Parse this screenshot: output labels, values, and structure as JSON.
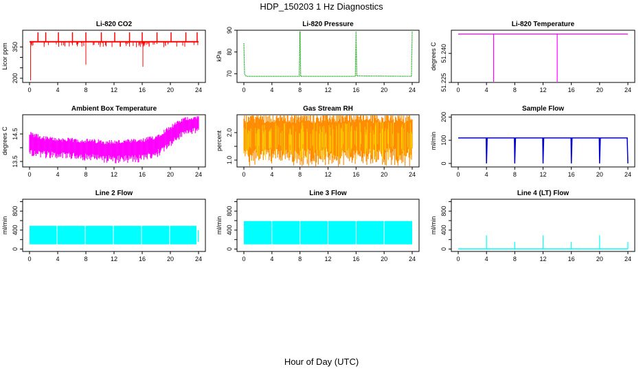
{
  "figure": {
    "title": "HDP_150203  1 Hz Diagnostics",
    "xlabel": "Hour of Day (UTC)"
  },
  "chart_data": [
    {
      "type": "line",
      "id": "co2",
      "title": "Li-820 CO2",
      "ylabel": "Licor ppm",
      "color": "#ff0000",
      "xlim": [
        0,
        24
      ],
      "ylim": [
        180,
        430
      ],
      "xticks": [
        0,
        4,
        8,
        12,
        16,
        20,
        24
      ],
      "yticks": [
        200,
        250,
        300,
        350
      ],
      "ytick_labels": [
        "200",
        "",
        "",
        "350"
      ],
      "series": [
        {
          "name": "baseline",
          "x": [
            0,
            24
          ],
          "y": [
            375,
            375
          ]
        },
        {
          "name": "spikes_up",
          "x": [
            1.2,
            2.3,
            4.1,
            6.1,
            8.0,
            10.2,
            12.1,
            14.2,
            16.0,
            18.1,
            20.1,
            22.2,
            23.8
          ],
          "y": [
            420,
            420,
            420,
            420,
            420,
            420,
            420,
            420,
            420,
            420,
            420,
            420,
            420
          ]
        },
        {
          "name": "spikes_down",
          "x": [
            0.15,
            8.0,
            16.1
          ],
          "y": [
            190,
            265,
            255
          ]
        }
      ]
    },
    {
      "type": "line",
      "id": "pressure",
      "title": "Li-820 Pressure",
      "ylabel": "kPa",
      "color": "#00a000",
      "xlim": [
        0,
        24
      ],
      "ylim": [
        66,
        90
      ],
      "xticks": [
        0,
        4,
        8,
        12,
        16,
        20,
        24
      ],
      "yticks": [
        70,
        80,
        90
      ],
      "ytick_labels": [
        "70",
        "80",
        "90"
      ],
      "series": [
        {
          "name": "pressure",
          "x": [
            0,
            0.1,
            0.2,
            0.4,
            7.9,
            8.0,
            8.1,
            15.9,
            16.0,
            16.1,
            23.9,
            24.0
          ],
          "y": [
            84,
            70,
            69.3,
            68.8,
            68.8,
            89.5,
            68.8,
            68.8,
            89.5,
            69.0,
            68.8,
            89.5
          ]
        }
      ]
    },
    {
      "type": "line",
      "id": "li820-temp",
      "title": "Li-820 Temperature",
      "ylabel": "degrees C",
      "color": "#ff00ff",
      "xlim": [
        0,
        24
      ],
      "ylim": [
        51.225,
        51.252
      ],
      "xticks": [
        0,
        4,
        8,
        12,
        16,
        20,
        24
      ],
      "yticks": [
        51.225,
        51.24
      ],
      "ytick_labels": [
        "51.225",
        "51.240"
      ],
      "series": [
        {
          "name": "temperature",
          "x": [
            0,
            5.0,
            5.0,
            5.0,
            14.0,
            14.0,
            14.0,
            24
          ],
          "y": [
            51.25,
            51.25,
            51.225,
            51.25,
            51.25,
            51.225,
            51.25,
            51.25
          ]
        }
      ]
    },
    {
      "type": "line",
      "id": "ambient-temp",
      "title": "Ambient Box Temperature",
      "ylabel": "degrees C",
      "color": "#ff00ff",
      "xlim": [
        0,
        24
      ],
      "ylim": [
        13.3,
        15.2
      ],
      "xticks": [
        0,
        4,
        8,
        12,
        16,
        20,
        24
      ],
      "yticks": [
        13.5,
        14.0,
        14.5
      ],
      "ytick_labels": [
        "13.5",
        "",
        "14.5"
      ],
      "series": [
        {
          "name": "upper",
          "x": [
            0,
            2,
            4,
            8,
            12,
            16,
            18,
            20,
            22,
            24
          ],
          "y": [
            14.5,
            14.35,
            14.3,
            14.25,
            14.2,
            14.25,
            14.4,
            14.75,
            15.05,
            15.1
          ]
        },
        {
          "name": "lower",
          "x": [
            0,
            2,
            4,
            8,
            12,
            16,
            18,
            20,
            22,
            24
          ],
          "y": [
            13.75,
            13.7,
            13.65,
            13.6,
            13.5,
            13.55,
            13.7,
            14.1,
            14.5,
            14.6
          ]
        }
      ]
    },
    {
      "type": "line",
      "id": "rh",
      "title": "Gas Stream RH",
      "ylabel": "percent",
      "color": "#ff8c00",
      "xlim": [
        0,
        24
      ],
      "ylim": [
        0.75,
        2.65
      ],
      "xticks": [
        0,
        4,
        8,
        12,
        16,
        20,
        24
      ],
      "yticks": [
        1.0,
        1.5,
        2.0
      ],
      "ytick_labels": [
        "1.0",
        "",
        "2.0"
      ],
      "series": [
        {
          "name": "upper",
          "x": [
            0,
            24
          ],
          "y": [
            2.55,
            2.55
          ]
        },
        {
          "name": "lower",
          "x": [
            0,
            24
          ],
          "y": [
            0.95,
            0.95
          ]
        }
      ]
    },
    {
      "type": "line",
      "id": "sample-flow",
      "title": "Sample Flow",
      "ylabel": "ml/min",
      "color": "#0000cc",
      "xlim": [
        0,
        24
      ],
      "ylim": [
        -15,
        210
      ],
      "xticks": [
        0,
        4,
        8,
        12,
        16,
        20,
        24
      ],
      "yticks": [
        0,
        100,
        200
      ],
      "ytick_labels": [
        "0",
        "100",
        "200"
      ],
      "series": [
        {
          "name": "flow",
          "x": [
            0,
            3.95,
            4.0,
            4.1,
            7.95,
            8.0,
            8.1,
            11.95,
            12.0,
            12.1,
            15.95,
            16.0,
            16.1,
            19.95,
            20.0,
            20.1,
            23.9,
            24.0
          ],
          "y": [
            110,
            110,
            0,
            110,
            110,
            0,
            110,
            110,
            0,
            110,
            110,
            0,
            110,
            110,
            0,
            110,
            110,
            0
          ]
        }
      ]
    },
    {
      "type": "area",
      "id": "line2-flow",
      "title": "Line 2 Flow",
      "ylabel": "ml/min",
      "color": "#00ffff",
      "xlim": [
        0,
        24
      ],
      "ylim": [
        -50,
        1050
      ],
      "xticks": [
        0,
        4,
        8,
        12,
        16,
        20,
        24
      ],
      "yticks": [
        0,
        200,
        400,
        600,
        800,
        1000
      ],
      "ytick_labels": [
        "0",
        "",
        "400",
        "",
        "800",
        ""
      ],
      "series": [
        {
          "name": "upper",
          "x": [
            0,
            23.7
          ],
          "y": [
            490,
            490
          ]
        },
        {
          "name": "lower",
          "x": [
            0,
            23.7
          ],
          "y": [
            100,
            100
          ]
        },
        {
          "name": "gaps",
          "x": [
            3.9,
            7.9,
            11.9,
            15.9,
            19.9
          ],
          "y": [
            0,
            0,
            0,
            0,
            0
          ]
        }
      ]
    },
    {
      "type": "area",
      "id": "line3-flow",
      "title": "Line 3 Flow",
      "ylabel": "ml/min",
      "color": "#00ffff",
      "xlim": [
        0,
        24
      ],
      "ylim": [
        -50,
        1050
      ],
      "xticks": [
        0,
        4,
        8,
        12,
        16,
        20,
        24
      ],
      "yticks": [
        0,
        200,
        400,
        600,
        800,
        1000
      ],
      "ytick_labels": [
        "0",
        "",
        "400",
        "",
        "800",
        ""
      ],
      "series": [
        {
          "name": "upper",
          "x": [
            0,
            24
          ],
          "y": [
            590,
            590
          ]
        },
        {
          "name": "lower",
          "x": [
            0,
            24
          ],
          "y": [
            100,
            100
          ]
        },
        {
          "name": "gaps",
          "x": [
            4.0,
            8.0,
            12.0,
            16.0,
            20.0
          ],
          "y": [
            0,
            0,
            0,
            0,
            0
          ]
        }
      ]
    },
    {
      "type": "line",
      "id": "line4-flow",
      "title": "Line 4 (LT) Flow",
      "ylabel": "ml/min",
      "color": "#00ffff",
      "xlim": [
        0,
        24
      ],
      "ylim": [
        -50,
        1050
      ],
      "xticks": [
        0,
        4,
        8,
        12,
        16,
        20,
        24
      ],
      "yticks": [
        0,
        200,
        400,
        600,
        800,
        1000
      ],
      "ytick_labels": [
        "0",
        "",
        "400",
        "",
        "800",
        ""
      ],
      "series": [
        {
          "name": "baseline",
          "x": [
            0,
            24
          ],
          "y": [
            5,
            5
          ]
        },
        {
          "name": "spikes",
          "x": [
            4.0,
            8.0,
            12.0,
            16.0,
            20.0,
            24.0
          ],
          "y": [
            290,
            150,
            290,
            150,
            290,
            150
          ]
        }
      ]
    }
  ]
}
